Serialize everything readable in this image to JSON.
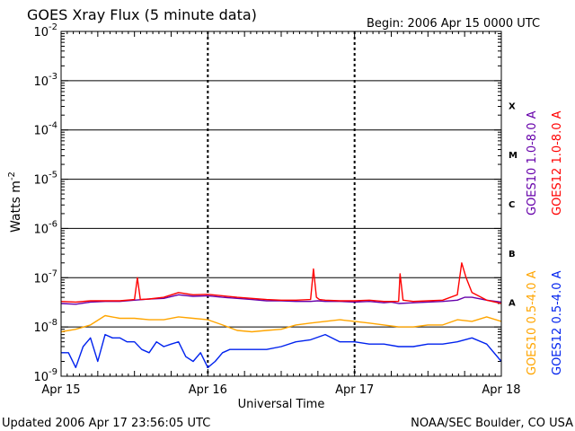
{
  "chart_data": {
    "type": "line",
    "title": "GOES Xray Flux (5 minute data)",
    "begin_label": "Begin:  2006 Apr 15 0000 UTC",
    "xlabel": "Universal Time",
    "ylabel": "Watts m",
    "ylabel_superscript": "-2",
    "x_ticks": [
      "Apr 15",
      "Apr 16",
      "Apr 17",
      "Apr 18"
    ],
    "x_range_days": [
      0,
      3
    ],
    "y_scale": "log",
    "ylim": [
      1e-09,
      0.01
    ],
    "y_ticks": [
      {
        "base": "10",
        "exp": "-9"
      },
      {
        "base": "10",
        "exp": "-8"
      },
      {
        "base": "10",
        "exp": "-7"
      },
      {
        "base": "10",
        "exp": "-6"
      },
      {
        "base": "10",
        "exp": "-5"
      },
      {
        "base": "10",
        "exp": "-4"
      },
      {
        "base": "10",
        "exp": "-3"
      },
      {
        "base": "10",
        "exp": "-2"
      }
    ],
    "flare_classes": [
      {
        "label": "A",
        "value": 1e-08
      },
      {
        "label": "B",
        "value": 1e-07
      },
      {
        "label": "C",
        "value": 1e-06
      },
      {
        "label": "M",
        "value": 1e-05
      },
      {
        "label": "X",
        "value": 0.0001
      }
    ],
    "grid": "horizontal decade lines",
    "legend": "right side, vertical",
    "footer_left": "Updated 2006 Apr 17 23:56:05 UTC",
    "footer_right": "NOAA/SEC Boulder, CO USA",
    "series": [
      {
        "name": "GOES10 1.0-8.0 A",
        "color": "#6600aa",
        "x": [
          0,
          0.1,
          0.2,
          0.3,
          0.4,
          0.5,
          0.6,
          0.7,
          0.8,
          0.9,
          1.0,
          1.1,
          1.2,
          1.3,
          1.4,
          1.5,
          1.6,
          1.7,
          1.75,
          1.8,
          1.9,
          2.0,
          2.1,
          2.2,
          2.25,
          2.3,
          2.4,
          2.5,
          2.6,
          2.7,
          2.75,
          2.8,
          2.9,
          3.0
        ],
        "y": [
          3e-08,
          2.9e-08,
          3.2e-08,
          3.3e-08,
          3.3e-08,
          3.5e-08,
          3.7e-08,
          3.8e-08,
          4.5e-08,
          4.2e-08,
          4.3e-08,
          4e-08,
          3.8e-08,
          3.6e-08,
          3.4e-08,
          3.4e-08,
          3.3e-08,
          3.3e-08,
          3.4e-08,
          3.3e-08,
          3.3e-08,
          3.2e-08,
          3.3e-08,
          3.1e-08,
          3.2e-08,
          3e-08,
          3.1e-08,
          3.2e-08,
          3.3e-08,
          3.5e-08,
          4e-08,
          4e-08,
          3.5e-08,
          3.2e-08
        ]
      },
      {
        "name": "GOES12 1.0-8.0 A",
        "color": "#ff0000",
        "x": [
          0,
          0.1,
          0.2,
          0.3,
          0.4,
          0.5,
          0.52,
          0.54,
          0.6,
          0.7,
          0.8,
          0.9,
          1.0,
          1.1,
          1.2,
          1.3,
          1.4,
          1.5,
          1.6,
          1.7,
          1.72,
          1.74,
          1.76,
          1.8,
          1.9,
          2.0,
          2.1,
          2.2,
          2.3,
          2.31,
          2.33,
          2.4,
          2.5,
          2.6,
          2.7,
          2.73,
          2.76,
          2.8,
          2.9,
          3.0
        ],
        "y": [
          3.3e-08,
          3.2e-08,
          3.4e-08,
          3.4e-08,
          3.4e-08,
          3.6e-08,
          1e-07,
          3.6e-08,
          3.7e-08,
          4e-08,
          5e-08,
          4.5e-08,
          4.6e-08,
          4.3e-08,
          4e-08,
          3.8e-08,
          3.6e-08,
          3.5e-08,
          3.5e-08,
          3.6e-08,
          1.5e-07,
          4e-08,
          3.6e-08,
          3.5e-08,
          3.4e-08,
          3.4e-08,
          3.5e-08,
          3.3e-08,
          3.3e-08,
          1.2e-07,
          3.5e-08,
          3.3e-08,
          3.4e-08,
          3.5e-08,
          4.5e-08,
          2e-07,
          1e-07,
          5e-08,
          3.5e-08,
          3e-08
        ]
      },
      {
        "name": "GOES10 0.5-4.0 A",
        "color": "#ffa500",
        "x": [
          0,
          0.1,
          0.2,
          0.3,
          0.4,
          0.5,
          0.6,
          0.7,
          0.8,
          0.9,
          1.0,
          1.1,
          1.2,
          1.3,
          1.4,
          1.5,
          1.6,
          1.7,
          1.8,
          1.9,
          2.0,
          2.1,
          2.2,
          2.3,
          2.4,
          2.5,
          2.6,
          2.7,
          2.8,
          2.9,
          3.0
        ],
        "y": [
          8e-09,
          9e-09,
          1.1e-08,
          1.7e-08,
          1.5e-08,
          1.5e-08,
          1.4e-08,
          1.4e-08,
          1.6e-08,
          1.5e-08,
          1.4e-08,
          1.1e-08,
          8.5e-09,
          8e-09,
          8.5e-09,
          9e-09,
          1.1e-08,
          1.2e-08,
          1.3e-08,
          1.4e-08,
          1.3e-08,
          1.2e-08,
          1.1e-08,
          1e-08,
          1e-08,
          1.1e-08,
          1.1e-08,
          1.4e-08,
          1.3e-08,
          1.6e-08,
          1.3e-08
        ]
      },
      {
        "name": "GOES12 0.5-4.0 A",
        "color": "#0022ee",
        "x": [
          0,
          0.05,
          0.1,
          0.15,
          0.2,
          0.25,
          0.3,
          0.35,
          0.4,
          0.45,
          0.5,
          0.55,
          0.6,
          0.65,
          0.7,
          0.75,
          0.8,
          0.85,
          0.9,
          0.95,
          1.0,
          1.05,
          1.1,
          1.15,
          1.2,
          1.3,
          1.4,
          1.5,
          1.6,
          1.7,
          1.8,
          1.9,
          2.0,
          2.1,
          2.2,
          2.3,
          2.4,
          2.5,
          2.6,
          2.7,
          2.8,
          2.9,
          3.0
        ],
        "y": [
          3e-09,
          3e-09,
          1.5e-09,
          4e-09,
          6e-09,
          2e-09,
          7e-09,
          6e-09,
          6e-09,
          5e-09,
          5e-09,
          3.5e-09,
          3e-09,
          5e-09,
          4e-09,
          4.5e-09,
          5e-09,
          2.5e-09,
          2e-09,
          3e-09,
          1.5e-09,
          2e-09,
          3e-09,
          3.5e-09,
          3.5e-09,
          3.5e-09,
          3.5e-09,
          4e-09,
          5e-09,
          5.5e-09,
          7e-09,
          5e-09,
          5e-09,
          4.5e-09,
          4.5e-09,
          4e-09,
          4e-09,
          4.5e-09,
          4.5e-09,
          5e-09,
          6e-09,
          4.5e-09,
          2e-09
        ]
      }
    ]
  }
}
